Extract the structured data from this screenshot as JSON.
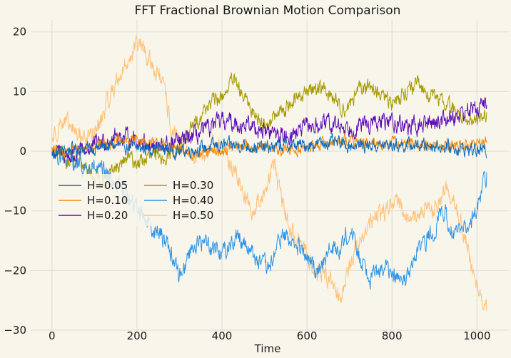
{
  "chart_data": {
    "type": "line",
    "title": "FFT Fractional Brownian Motion Comparison",
    "xlabel": "Time",
    "ylabel": "",
    "xlim": [
      -50,
      1075
    ],
    "ylim": [
      -30,
      22
    ],
    "xticks": [
      0,
      200,
      400,
      600,
      800,
      1000
    ],
    "yticks": [
      -30,
      -20,
      -10,
      0,
      10,
      20
    ],
    "ytick_labels": [
      "−30",
      "−20",
      "−10",
      "0",
      "10",
      "20"
    ],
    "grid": true,
    "legend_position": "lower-left",
    "legend_columns": 2,
    "background": "#f8f5ea",
    "series": [
      {
        "name": "H=0.05",
        "color": "#0a6bbd",
        "x": [
          0,
          50,
          100,
          150,
          200,
          250,
          300,
          350,
          400,
          450,
          500,
          550,
          600,
          650,
          700,
          750,
          800,
          850,
          900,
          950,
          1023
        ],
        "y": [
          -0.5,
          0.5,
          0.5,
          1,
          0.5,
          0.5,
          0,
          0.5,
          1,
          1,
          0.5,
          1,
          1,
          1.5,
          1,
          1,
          1,
          1,
          1,
          0.5,
          0
        ],
        "amp": 1.1
      },
      {
        "name": "H=0.10",
        "color": "#f28c0f",
        "x": [
          0,
          50,
          100,
          150,
          200,
          250,
          300,
          350,
          400,
          450,
          500,
          550,
          600,
          650,
          700,
          750,
          800,
          850,
          900,
          950,
          1023
        ],
        "y": [
          0,
          0,
          1,
          1.5,
          2,
          1,
          0,
          -0.5,
          0,
          1,
          0.5,
          0,
          0.5,
          1.5,
          2,
          1,
          1.5,
          1,
          1,
          1,
          1.5
        ],
        "amp": 1.0
      },
      {
        "name": "H=0.20",
        "color": "#5a0bb8",
        "x": [
          0,
          50,
          100,
          150,
          200,
          250,
          300,
          350,
          400,
          450,
          500,
          550,
          600,
          650,
          700,
          750,
          800,
          850,
          900,
          950,
          1023
        ],
        "y": [
          0,
          -1,
          1,
          2.5,
          2,
          0.5,
          1.5,
          3,
          5,
          4.5,
          3.5,
          2.5,
          4,
          4.5,
          4,
          4.5,
          5,
          4,
          5,
          6,
          8
        ],
        "amp": 1.5
      },
      {
        "name": "H=0.30",
        "color": "#a69a00",
        "x": [
          0,
          25,
          50,
          80,
          100,
          125,
          150,
          180,
          200,
          230,
          260,
          300,
          340,
          370,
          400,
          425,
          450,
          480,
          500,
          530,
          560,
          600,
          630,
          660,
          690,
          720,
          750,
          780,
          800,
          830,
          860,
          900,
          930,
          960,
          990,
          1023
        ],
        "y": [
          0,
          -1,
          -2,
          -3,
          -4,
          -5,
          -3,
          -1,
          -2,
          -1,
          -1,
          0.5,
          5,
          8,
          9,
          12,
          9,
          6,
          4.5,
          6,
          8,
          10,
          11,
          9,
          7,
          10,
          11,
          9,
          8,
          10,
          11,
          9,
          8,
          6,
          5,
          6
        ],
        "amp": 1.3
      },
      {
        "name": "H=0.40",
        "color": "#2f95e8",
        "x": [
          0,
          50,
          80,
          100,
          130,
          160,
          190,
          210,
          240,
          270,
          300,
          330,
          360,
          400,
          440,
          480,
          510,
          540,
          560,
          590,
          620,
          650,
          680,
          700,
          720,
          750,
          780,
          800,
          830,
          860,
          890,
          920,
          950,
          980,
          1000,
          1023
        ],
        "y": [
          0,
          -2,
          -3,
          -3,
          -4,
          -6,
          -9,
          -10,
          -13,
          -15,
          -21,
          -16,
          -15,
          -17,
          -14,
          -18,
          -20,
          -14,
          -15,
          -17,
          -20,
          -17,
          -16,
          -13,
          -17,
          -21,
          -19,
          -21,
          -22,
          -17,
          -14,
          -10,
          -14,
          -13,
          -9,
          -4
        ],
        "amp": 1.6
      },
      {
        "name": "H=0.50",
        "color": "#ffc27a",
        "x": [
          0,
          20,
          40,
          60,
          80,
          110,
          140,
          170,
          200,
          215,
          230,
          250,
          265,
          280,
          300,
          320,
          350,
          380,
          400,
          420,
          440,
          470,
          500,
          520,
          540,
          560,
          590,
          620,
          650,
          680,
          700,
          720,
          750,
          780,
          810,
          840,
          870,
          900,
          930,
          960,
          990,
          1023
        ],
        "y": [
          2,
          5,
          4,
          3,
          2,
          4,
          10,
          14,
          18,
          17,
          15,
          13,
          10,
          4,
          1,
          0,
          -2,
          2,
          1,
          -2,
          -5,
          -10,
          -7,
          -2,
          -8,
          -13,
          -16,
          -20,
          -21,
          -24,
          -19,
          -16,
          -12,
          -10,
          -8,
          -12,
          -10,
          -10,
          -6,
          -11,
          -20,
          -27
        ],
        "amp": 1.6
      }
    ]
  }
}
